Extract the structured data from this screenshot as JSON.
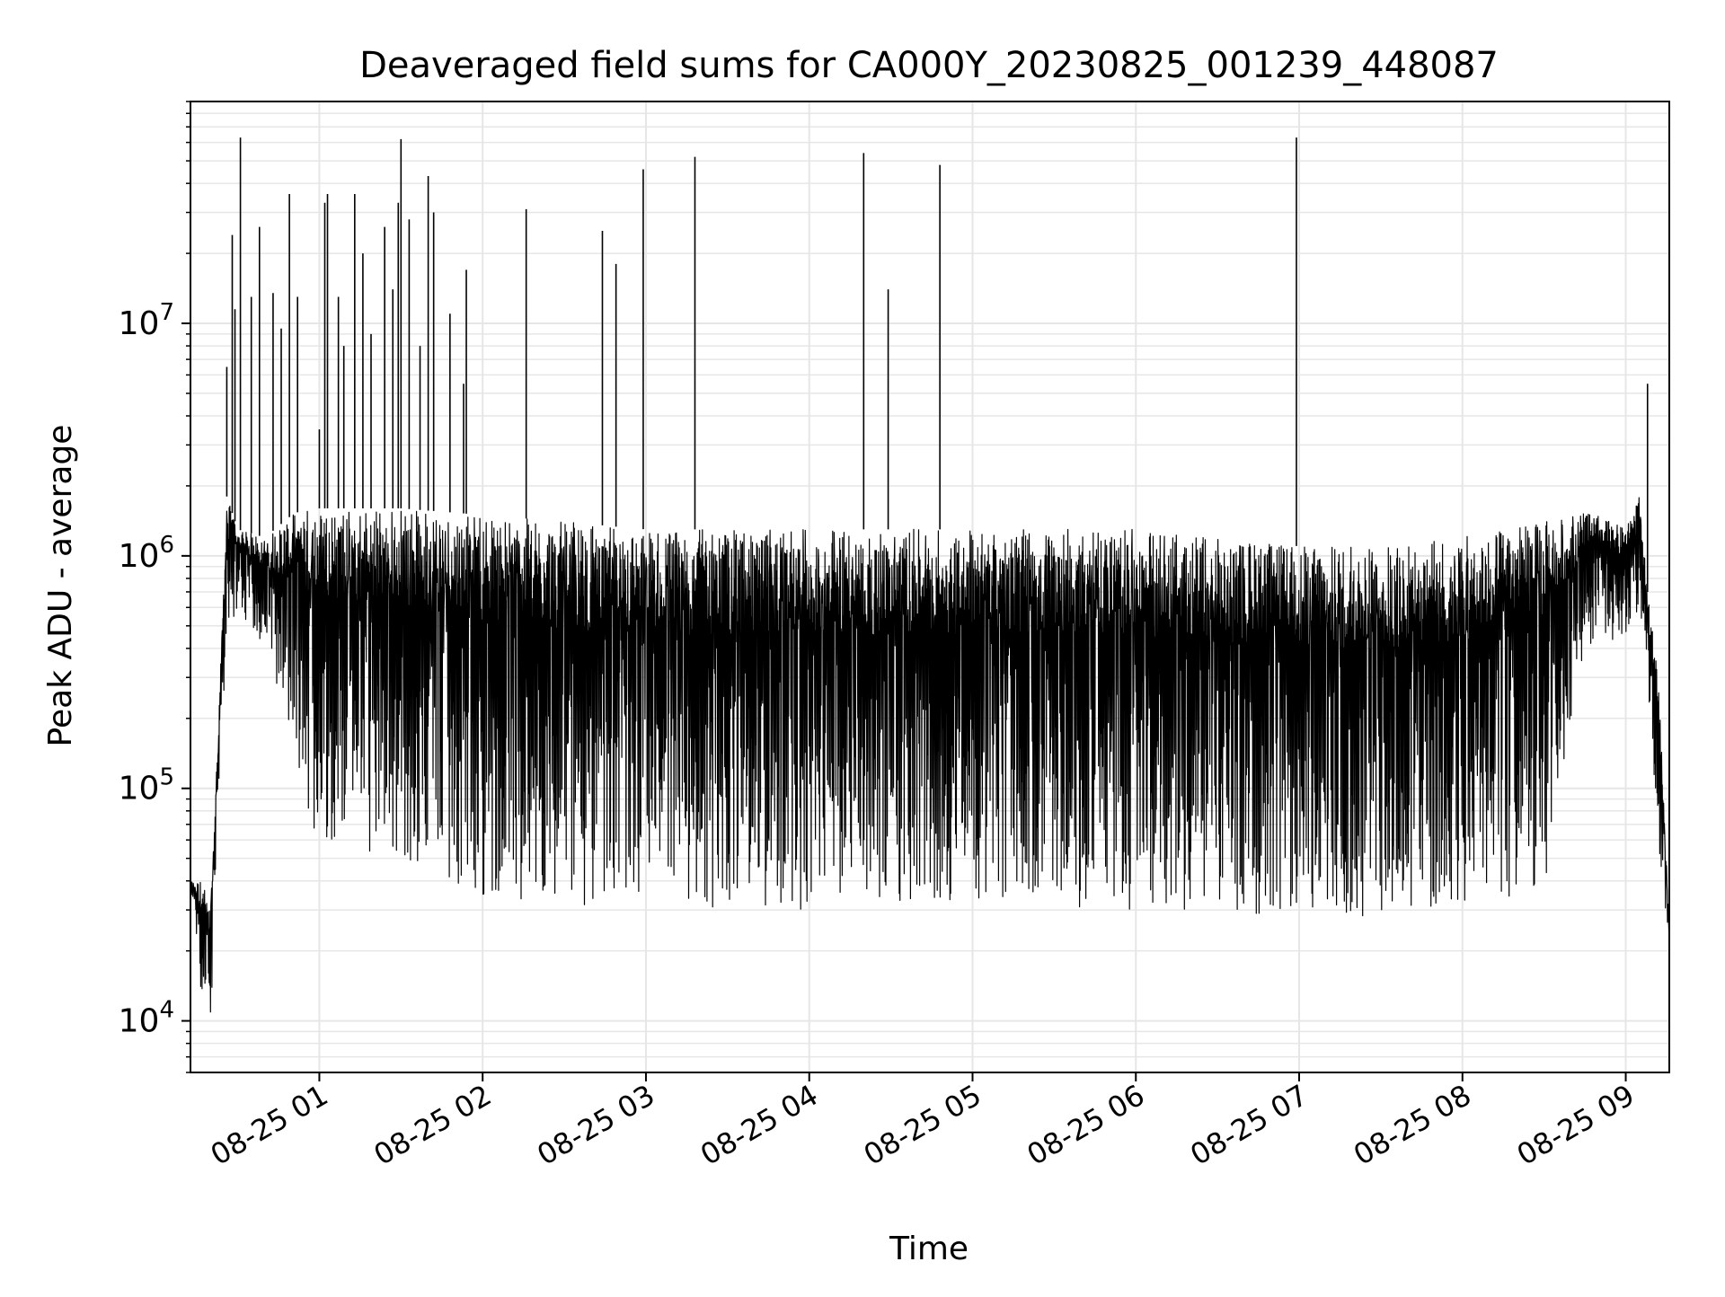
{
  "chart_data": {
    "type": "line",
    "title": "Deaveraged field sums for CA000Y_20230825_001239_448087",
    "xlabel": "Time",
    "ylabel": "Peak ADU - average",
    "x_scale": "time",
    "y_scale": "log",
    "xlim": [
      "2023-08-25 00:12:39",
      "2023-08-25 09:16:00"
    ],
    "ylim": [
      6000,
      90000000
    ],
    "x_ticks": [
      {
        "time": "2023-08-25 01:00",
        "label": "08-25 01"
      },
      {
        "time": "2023-08-25 02:00",
        "label": "08-25 02"
      },
      {
        "time": "2023-08-25 03:00",
        "label": "08-25 03"
      },
      {
        "time": "2023-08-25 04:00",
        "label": "08-25 04"
      },
      {
        "time": "2023-08-25 05:00",
        "label": "08-25 05"
      },
      {
        "time": "2023-08-25 06:00",
        "label": "08-25 06"
      },
      {
        "time": "2023-08-25 07:00",
        "label": "08-25 07"
      },
      {
        "time": "2023-08-25 08:00",
        "label": "08-25 08"
      },
      {
        "time": "2023-08-25 09:00",
        "label": "08-25 09"
      }
    ],
    "y_ticks": [
      {
        "value": 10000,
        "base": "10",
        "exp": "4"
      },
      {
        "value": 100000,
        "base": "10",
        "exp": "5"
      },
      {
        "value": 1000000,
        "base": "10",
        "exp": "6"
      },
      {
        "value": 10000000,
        "base": "10",
        "exp": "7"
      }
    ],
    "grid": true,
    "line_color": "#000000",
    "grid_color": "#e6e6e6",
    "series": [
      {
        "description": "dense noisy signal, band shown by envelope",
        "envelope": [
          {
            "t": "00:12:39",
            "low": 35000,
            "high": 40000
          },
          {
            "t": "00:17",
            "low": 12000,
            "high": 40000
          },
          {
            "t": "00:20",
            "low": 9000,
            "high": 30000
          },
          {
            "t": "00:23",
            "low": 100000,
            "high": 200000
          },
          {
            "t": "00:26",
            "low": 400000,
            "high": 1800000
          },
          {
            "t": "00:30",
            "low": 600000,
            "high": 1300000
          },
          {
            "t": "00:40",
            "low": 400000,
            "high": 1200000
          },
          {
            "t": "00:50",
            "low": 150000,
            "high": 1500000
          },
          {
            "t": "00:55",
            "low": 70000,
            "high": 1600000
          },
          {
            "t": "01:00",
            "low": 60000,
            "high": 1600000
          },
          {
            "t": "01:30",
            "low": 50000,
            "high": 1600000
          },
          {
            "t": "02:00",
            "low": 35000,
            "high": 1500000
          },
          {
            "t": "02:30",
            "low": 30000,
            "high": 1400000
          },
          {
            "t": "03:00",
            "low": 30000,
            "high": 1300000
          },
          {
            "t": "04:00",
            "low": 30000,
            "high": 1300000
          },
          {
            "t": "05:00",
            "low": 32000,
            "high": 1300000
          },
          {
            "t": "06:00",
            "low": 30000,
            "high": 1300000
          },
          {
            "t": "07:00",
            "low": 28000,
            "high": 1100000
          },
          {
            "t": "07:30",
            "low": 28000,
            "high": 1100000
          },
          {
            "t": "08:00",
            "low": 30000,
            "high": 1200000
          },
          {
            "t": "08:30",
            "low": 35000,
            "high": 1400000
          },
          {
            "t": "08:45",
            "low": 400000,
            "high": 1600000
          },
          {
            "t": "09:00",
            "low": 450000,
            "high": 1300000
          },
          {
            "t": "09:05",
            "low": 600000,
            "high": 1800000
          },
          {
            "t": "09:08",
            "low": 300000,
            "high": 700000
          },
          {
            "t": "09:12",
            "low": 60000,
            "high": 300000
          },
          {
            "t": "09:16",
            "low": 20000,
            "high": 25000
          }
        ],
        "spikes": [
          {
            "t": "00:26",
            "value": 6500000
          },
          {
            "t": "00:28",
            "value": 24000000
          },
          {
            "t": "00:29",
            "value": 11500000
          },
          {
            "t": "00:31",
            "value": 63000000
          },
          {
            "t": "00:35",
            "value": 13000000
          },
          {
            "t": "00:38",
            "value": 26000000
          },
          {
            "t": "00:43",
            "value": 13500000
          },
          {
            "t": "00:46",
            "value": 9500000
          },
          {
            "t": "00:49",
            "value": 36000000
          },
          {
            "t": "00:52",
            "value": 13000000
          },
          {
            "t": "01:00",
            "value": 3500000
          },
          {
            "t": "01:02",
            "value": 33000000
          },
          {
            "t": "01:03",
            "value": 36000000
          },
          {
            "t": "01:07",
            "value": 13000000
          },
          {
            "t": "01:09",
            "value": 8000000
          },
          {
            "t": "01:13",
            "value": 36000000
          },
          {
            "t": "01:16",
            "value": 20000000
          },
          {
            "t": "01:19",
            "value": 9000000
          },
          {
            "t": "01:24",
            "value": 26000000
          },
          {
            "t": "01:27",
            "value": 14000000
          },
          {
            "t": "01:29",
            "value": 33000000
          },
          {
            "t": "01:30",
            "value": 62000000
          },
          {
            "t": "01:33",
            "value": 28000000
          },
          {
            "t": "01:37",
            "value": 8000000
          },
          {
            "t": "01:40",
            "value": 43000000
          },
          {
            "t": "01:42",
            "value": 30000000
          },
          {
            "t": "01:48",
            "value": 11000000
          },
          {
            "t": "01:53",
            "value": 5500000
          },
          {
            "t": "01:54",
            "value": 17000000
          },
          {
            "t": "02:16",
            "value": 31000000
          },
          {
            "t": "02:44",
            "value": 25000000
          },
          {
            "t": "02:49",
            "value": 18000000
          },
          {
            "t": "02:59",
            "value": 46000000
          },
          {
            "t": "03:18",
            "value": 52000000
          },
          {
            "t": "04:20",
            "value": 54000000
          },
          {
            "t": "04:29",
            "value": 14000000
          },
          {
            "t": "04:48",
            "value": 48000000
          },
          {
            "t": "06:59",
            "value": 63000000
          },
          {
            "t": "09:08",
            "value": 5500000
          }
        ]
      }
    ]
  }
}
